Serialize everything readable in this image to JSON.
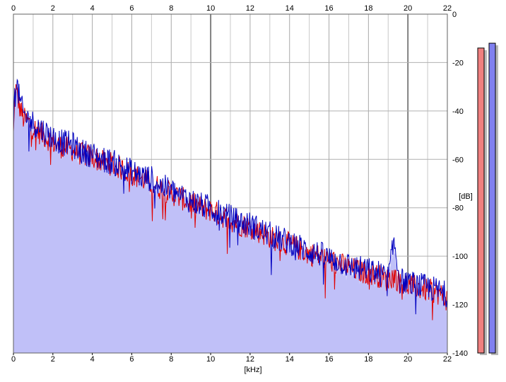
{
  "chart_data": {
    "type": "area",
    "xlabel": "[kHz]",
    "ylabel": "[dB]",
    "xlim": [
      0,
      22
    ],
    "ylim": [
      -140,
      0
    ],
    "x_ticks": [
      "0",
      "2",
      "4",
      "6",
      "8",
      "10",
      "12",
      "14",
      "16",
      "18",
      "20",
      "22"
    ],
    "y_ticks": [
      "0",
      "-20",
      "-40",
      "-60",
      "-80",
      "-100",
      "-120",
      "-140"
    ],
    "grid": true,
    "colors": {
      "fill": "#c0c0f8",
      "left": "#e00000",
      "right": "#0000c0",
      "grid_minor": "#c8c8c8",
      "grid_major": "#808080"
    },
    "series": [
      {
        "color": "#e00000",
        "x": [
          0,
          0.1,
          0.2,
          0.3,
          0.5,
          0.8,
          1.0,
          1.5,
          2.0,
          2.5,
          3.0,
          3.5,
          4.0,
          4.5,
          5.0,
          5.5,
          6.0,
          6.5,
          7.0,
          7.5,
          8.0,
          8.5,
          9.0,
          9.5,
          10.0,
          10.5,
          11.0,
          11.5,
          12.0,
          12.5,
          13.0,
          13.5,
          14.0,
          14.5,
          15.0,
          15.5,
          16.0,
          16.5,
          17.0,
          17.5,
          18.0,
          18.5,
          19.0,
          19.3,
          19.6,
          20.0,
          20.5,
          21.0,
          21.5,
          22.0
        ],
        "values": [
          -50,
          -30,
          -34,
          -38,
          -43,
          -45,
          -47,
          -50,
          -53,
          -55,
          -56,
          -58,
          -59,
          -61,
          -62,
          -64,
          -66,
          -68,
          -70,
          -72,
          -74,
          -76,
          -78,
          -80,
          -81,
          -83,
          -85,
          -87,
          -88,
          -90,
          -92,
          -94,
          -95,
          -97,
          -99,
          -100,
          -102,
          -103,
          -105,
          -106,
          -107,
          -108,
          -110,
          -108,
          -111,
          -112,
          -113,
          -114,
          -115,
          -118
        ]
      },
      {
        "color": "#0000c0",
        "x": [
          0,
          0.1,
          0.2,
          0.3,
          0.5,
          0.8,
          1.0,
          1.5,
          2.0,
          2.5,
          3.0,
          3.5,
          4.0,
          4.5,
          5.0,
          5.5,
          6.0,
          6.5,
          7.0,
          7.5,
          8.0,
          8.5,
          9.0,
          9.5,
          10.0,
          10.5,
          11.0,
          11.5,
          12.0,
          12.5,
          13.0,
          13.5,
          14.0,
          14.5,
          15.0,
          15.5,
          16.0,
          16.5,
          17.0,
          17.5,
          18.0,
          18.5,
          19.0,
          19.3,
          19.6,
          20.0,
          20.5,
          21.0,
          21.5,
          22.0
        ],
        "values": [
          -46,
          -26,
          -30,
          -35,
          -41,
          -44,
          -45,
          -48,
          -51,
          -53,
          -54,
          -57,
          -58,
          -60,
          -61,
          -63,
          -65,
          -67,
          -68,
          -71,
          -73,
          -75,
          -77,
          -79,
          -80,
          -82,
          -84,
          -86,
          -87,
          -89,
          -91,
          -93,
          -94,
          -96,
          -98,
          -99,
          -101,
          -102,
          -104,
          -105,
          -106,
          -107,
          -109,
          -94,
          -110,
          -111,
          -112,
          -113,
          -114,
          -116
        ]
      }
    ],
    "level_meters": [
      {
        "color": "#f08080",
        "value_db": -14
      },
      {
        "color": "#8080f0",
        "value_db": -12
      }
    ]
  }
}
